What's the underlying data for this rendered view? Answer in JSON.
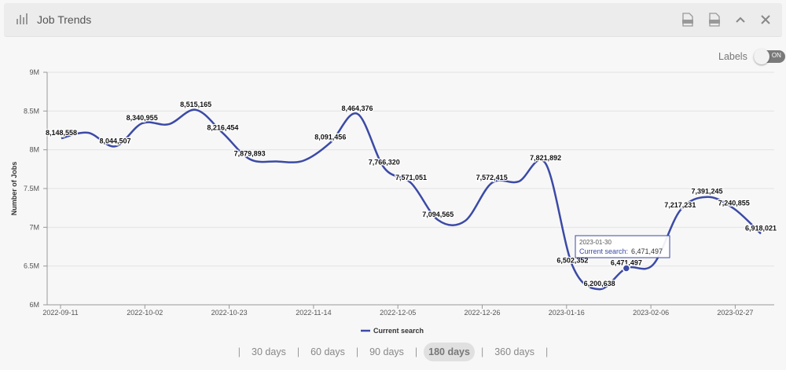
{
  "header": {
    "title": "Job Trends",
    "title_icon": "bar-chart-icon"
  },
  "toolbar": {
    "icons": [
      "png-export-icon",
      "csv-export-icon",
      "collapse-chevron-up-icon",
      "close-icon"
    ]
  },
  "labels_toggle": {
    "label": "Labels",
    "state": "ON"
  },
  "chart_data": {
    "type": "line",
    "title": "",
    "xlabel": "",
    "ylabel": "Number of Jobs",
    "ylim": [
      6000000,
      9000000
    ],
    "yticks": [
      6000000,
      6500000,
      7000000,
      7500000,
      8000000,
      8500000,
      9000000
    ],
    "ytick_labels": [
      "6M",
      "6.5M",
      "7M",
      "7.5M",
      "8M",
      "8.5M",
      "9M"
    ],
    "xtick_labels": [
      "2022-09-11",
      "2022-10-02",
      "2022-10-23",
      "2022-11-14",
      "2022-12-05",
      "2022-12-26",
      "2023-01-16",
      "2023-02-06",
      "2023-02-27"
    ],
    "grid": "horizontal",
    "legend": "bottom-center",
    "color": "#3b4aa6",
    "series": [
      {
        "name": "Current search",
        "values": [
          8148558,
          8220000,
          8044507,
          8340955,
          8330000,
          8515165,
          8216454,
          7879893,
          7850000,
          7860000,
          8091456,
          8464376,
          7766320,
          7571051,
          7094565,
          7080000,
          7572415,
          7590000,
          7821892,
          6502352,
          6200638,
          6471497,
          6520000,
          7217231,
          7391245,
          7240855,
          6918021
        ],
        "labels": [
          "8,148,558",
          "",
          "8,044,507",
          "8,340,955",
          "",
          "8,515,165",
          "8,216,454",
          "7,879,893",
          "",
          "",
          "8,091,456",
          "8,464,376",
          "7,766,320",
          "7,571,051",
          "7,094,565",
          "",
          "7,572,415",
          "",
          "7,821,892",
          "6,502,352",
          "6,200,638",
          "6,471,497",
          "",
          "7,217,231",
          "7,391,245",
          "7,240,855",
          "6,918,021"
        ]
      }
    ],
    "tooltip": {
      "index": 21,
      "date": "2023-01-30",
      "series_label": "Current search:",
      "value": "6,471,497"
    }
  },
  "range_selector": {
    "options": [
      "30 days",
      "60 days",
      "90 days",
      "180 days",
      "360 days"
    ],
    "selected": "180 days"
  }
}
